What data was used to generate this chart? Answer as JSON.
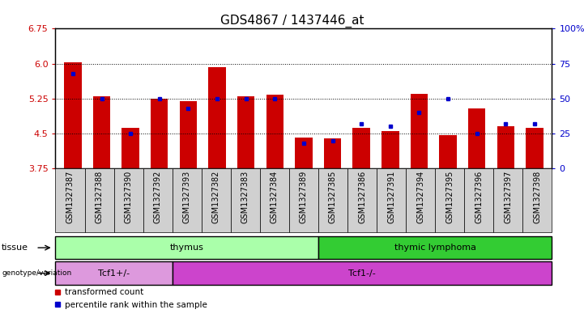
{
  "title": "GDS4867 / 1437446_at",
  "samples": [
    "GSM1327387",
    "GSM1327388",
    "GSM1327390",
    "GSM1327392",
    "GSM1327393",
    "GSM1327382",
    "GSM1327383",
    "GSM1327384",
    "GSM1327389",
    "GSM1327385",
    "GSM1327386",
    "GSM1327391",
    "GSM1327394",
    "GSM1327395",
    "GSM1327396",
    "GSM1327397",
    "GSM1327398"
  ],
  "red_values": [
    6.03,
    5.3,
    4.63,
    5.25,
    5.2,
    5.92,
    5.3,
    5.33,
    4.42,
    4.4,
    4.63,
    4.55,
    5.35,
    4.47,
    5.04,
    4.65,
    4.63
  ],
  "blue_percentiles": [
    68,
    50,
    25,
    50,
    43,
    50,
    50,
    50,
    18,
    20,
    32,
    30,
    40,
    50,
    25,
    32,
    32
  ],
  "ylim_left": [
    3.75,
    6.75
  ],
  "ylim_right": [
    0,
    100
  ],
  "yticks_left": [
    3.75,
    4.5,
    5.25,
    6.0,
    6.75
  ],
  "yticks_right": [
    0,
    25,
    50,
    75,
    100
  ],
  "bar_color": "#cc0000",
  "dot_color": "#0000cc",
  "baseline": 3.75,
  "tissue_groups": [
    {
      "label": "thymus",
      "start": 0,
      "end": 9,
      "color": "#aaffaa"
    },
    {
      "label": "thymic lymphoma",
      "start": 9,
      "end": 17,
      "color": "#33cc33"
    }
  ],
  "genotype_groups": [
    {
      "label": "Tcf1+/-",
      "start": 0,
      "end": 4,
      "color": "#dd99dd"
    },
    {
      "label": "Tcf1-/-",
      "start": 4,
      "end": 17,
      "color": "#cc44cc"
    }
  ],
  "legend_red": "transformed count",
  "legend_blue": "percentile rank within the sample",
  "title_fontsize": 11,
  "tick_label_fontsize": 7,
  "axis_label_color_left": "#cc0000",
  "axis_label_color_right": "#0000cc"
}
